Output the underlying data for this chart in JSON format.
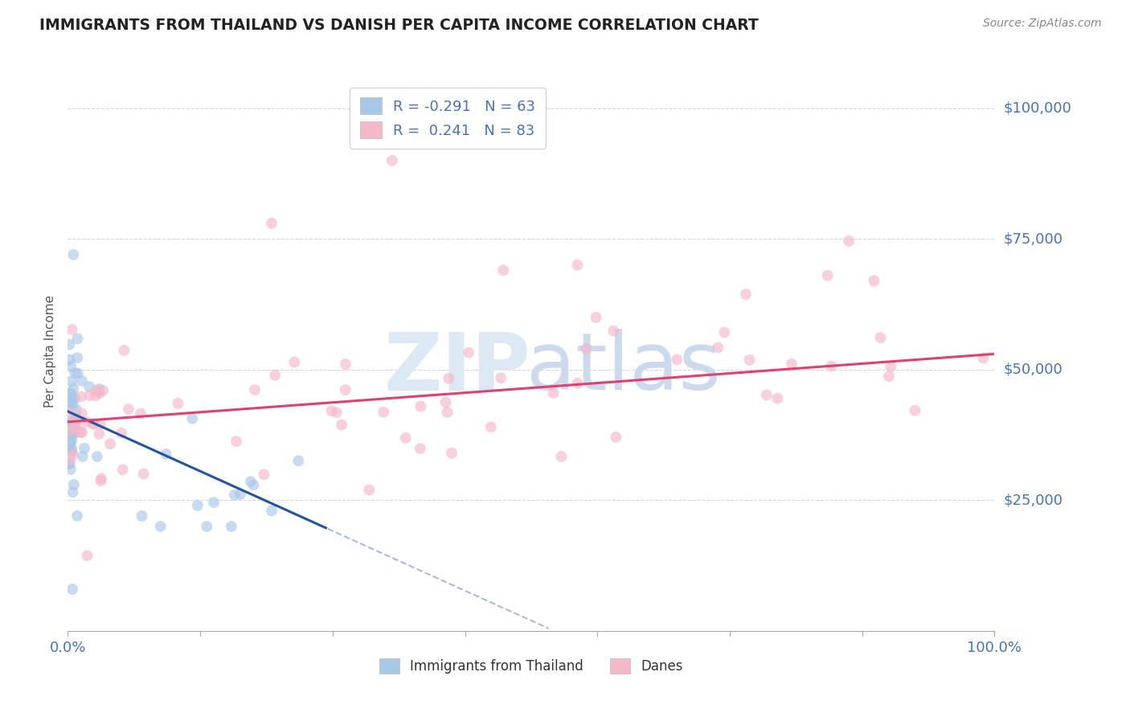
{
  "title": "IMMIGRANTS FROM THAILAND VS DANISH PER CAPITA INCOME CORRELATION CHART",
  "source": "Source: ZipAtlas.com",
  "ylabel": "Per Capita Income",
  "xlim": [
    0,
    1.0
  ],
  "ylim": [
    0,
    107000
  ],
  "ytick_vals": [
    25000,
    50000,
    75000,
    100000
  ],
  "ytick_labels": [
    "$25,000",
    "$50,000",
    "$75,000",
    "$100,000"
  ],
  "xtick_vals": [
    0.0,
    0.1429,
    0.2857,
    0.4286,
    0.5714,
    0.7143,
    0.8571,
    1.0
  ],
  "xtick_labels": [
    "0.0%",
    "",
    "",
    "",
    "",
    "",
    "",
    "100.0%"
  ],
  "background_color": "#ffffff",
  "grid_color": "#cccccc",
  "blue_scatter_color": "#a8c8e8",
  "pink_scatter_color": "#f4b8c8",
  "blue_line_color": "#2255a0",
  "pink_line_color": "#e04070",
  "blue_intercept": 42000,
  "blue_slope": -80000,
  "blue_line_end": 0.28,
  "pink_intercept": 40000,
  "pink_slope": 13000,
  "watermark_zip_color": "#dde8f5",
  "watermark_atlas_color": "#ccdaee",
  "legend_text_color": "#4472c4",
  "axis_tick_color": "#4472c4",
  "source_color": "#888888"
}
